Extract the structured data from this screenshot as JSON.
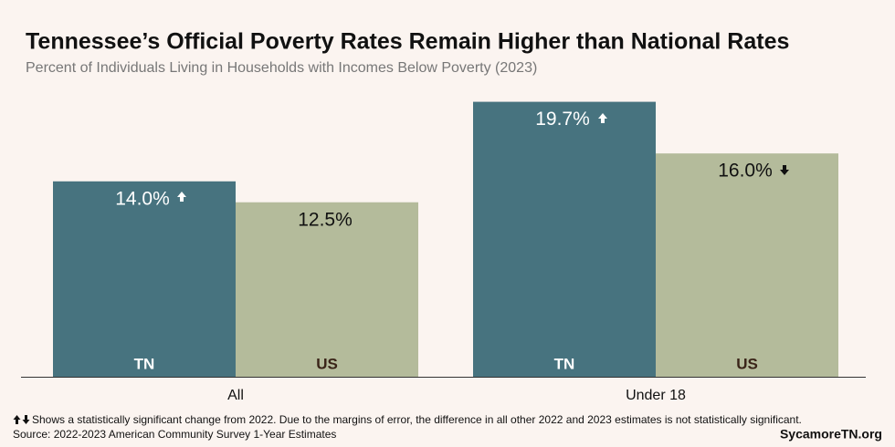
{
  "chart_data": {
    "type": "bar",
    "title": "Tennessee’s Official Poverty Rates Remain Higher than National Rates",
    "subtitle": "Percent of Individuals Living in Households with Incomes Below Poverty (2023)",
    "categories": [
      "All",
      "Under 18"
    ],
    "series": [
      {
        "name": "TN",
        "color": "#47737f",
        "label_color": "#ffffff",
        "values": [
          14.0,
          19.7
        ],
        "value_labels": [
          "14.0%",
          "19.7%"
        ]
      },
      {
        "name": "US",
        "color": "#b4bb9b",
        "label_color": "#111111",
        "values": [
          12.5,
          16.0
        ],
        "value_labels": [
          "12.5%",
          "16.0%"
        ]
      }
    ],
    "ylim": [
      0,
      20
    ],
    "footnote": "Shows a statistically significant change from 2022. Due to the margins of error, the difference in all other 2022 and 2023 estimates is not statistically significant.",
    "source": "Source: 2022-2023 American Community Survey 1-Year Estimates",
    "brand": "SycamoreTN.org"
  }
}
